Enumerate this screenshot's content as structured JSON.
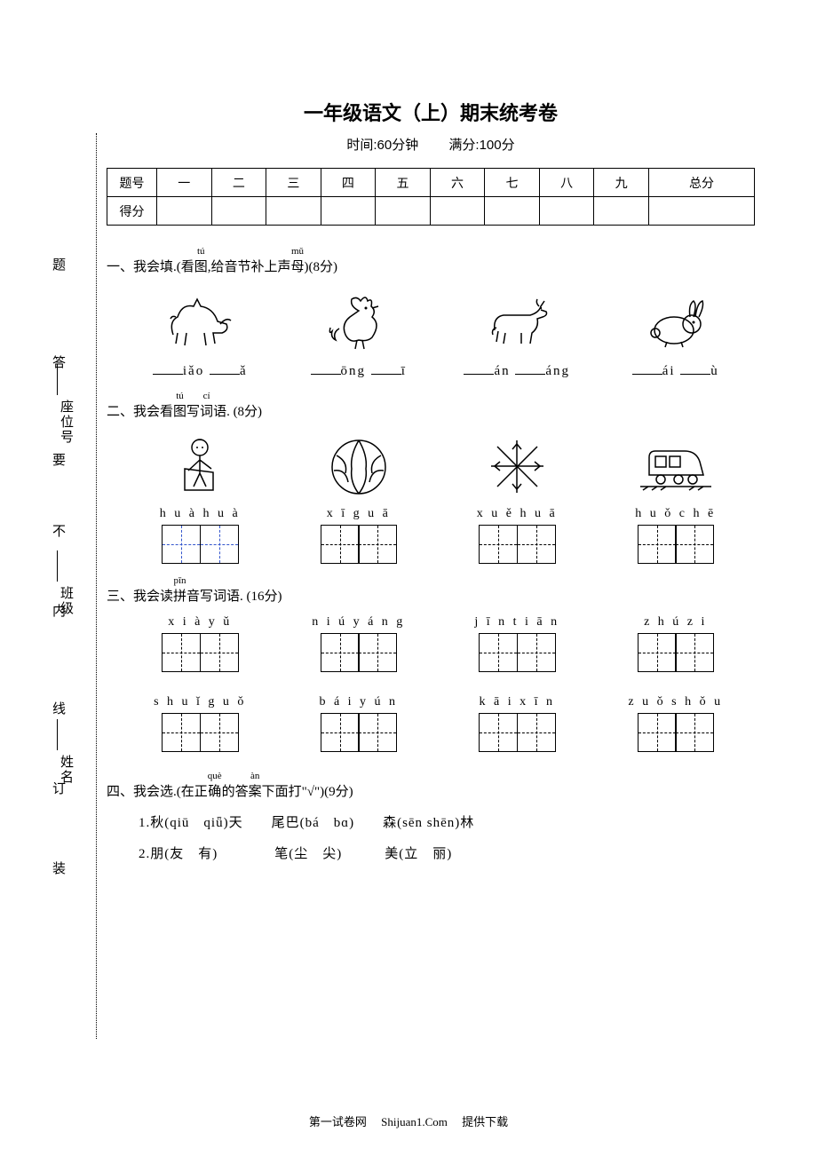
{
  "title": "一年级语文（上）期末统考卷",
  "subtitle_time": "时间:60分钟",
  "subtitle_score": "满分:100分",
  "table_header_label": "题号",
  "table_score_label": "得分",
  "table_cols": [
    "一",
    "二",
    "三",
    "四",
    "五",
    "六",
    "七",
    "八",
    "九",
    "总分"
  ],
  "gutter": {
    "labels": [
      "题",
      "答",
      "要",
      "不",
      "内",
      "线",
      "订",
      "装"
    ],
    "fields": [
      "座位号",
      "班级",
      "姓名"
    ]
  },
  "q1": {
    "prefix": "一、我会填.(看",
    "ruby1_base": "图",
    "ruby1_top": "tú",
    "mid": ",给音节补上声",
    "ruby2_base": "母",
    "ruby2_top": "mǔ",
    "suffix": ")(8分)",
    "items": [
      {
        "icon": "horse",
        "fills": [
          "iǎo",
          "ǎ"
        ]
      },
      {
        "icon": "rooster",
        "fills": [
          "ōng",
          "ī"
        ]
      },
      {
        "icon": "goat",
        "fills": [
          "án",
          "áng"
        ]
      },
      {
        "icon": "rabbit",
        "fills": [
          "ái",
          "ù"
        ]
      }
    ]
  },
  "q2": {
    "prefix": "二、我会看",
    "ruby1_base": "图",
    "ruby1_top": "tú",
    "mid": "写",
    "ruby2_base": "词",
    "ruby2_top": "cí",
    "suffix": "语. (8分)",
    "items": [
      {
        "icon": "child",
        "pinyin": "huà huà",
        "boxes": 2,
        "blue": true
      },
      {
        "icon": "watermelon",
        "pinyin": "xī guā",
        "boxes": 2
      },
      {
        "icon": "snowflake",
        "pinyin": "xuě huā",
        "boxes": 2
      },
      {
        "icon": "train",
        "pinyin": "huǒ chē",
        "boxes": 2
      }
    ]
  },
  "q3": {
    "prefix": "三、我会读",
    "ruby1_base": "拼",
    "ruby1_top": "pīn",
    "suffix": "音写词语. (16分)",
    "rows": [
      [
        {
          "pinyin": "xià yǔ"
        },
        {
          "pinyin": "niú yáng"
        },
        {
          "pinyin": "jīn tiān"
        },
        {
          "pinyin": "zhú zi"
        }
      ],
      [
        {
          "pinyin": "shuǐ guǒ"
        },
        {
          "pinyin": "bái yún"
        },
        {
          "pinyin": "kāi xīn"
        },
        {
          "pinyin": "zuǒ shǒu"
        }
      ]
    ]
  },
  "q4": {
    "prefix": "四、我会选.(在正",
    "ruby1_base": "确",
    "ruby1_top": "què",
    "mid": "的答",
    "ruby2_base": "案",
    "ruby2_top": "àn",
    "suffix": "下面打\"√\")(9分)",
    "line1": "1.秋(qiū　qiǖ)天　　尾巴(bá　bɑ)　　森(sēn shēn)林",
    "line2": "2.朋(友　有)　　　　笔(尘　尖)　　　美(立　丽)"
  },
  "footer_a": "第一试卷网",
  "footer_b": "Shijuan1.Com",
  "footer_c": "提供下载"
}
